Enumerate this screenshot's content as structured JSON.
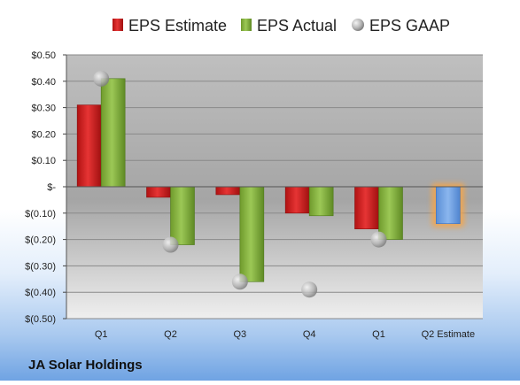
{
  "chart_data": {
    "type": "bar",
    "title": "",
    "xlabel": "",
    "ylabel": "",
    "ylim": [
      -0.5,
      0.5
    ],
    "yticks": [
      0.5,
      0.4,
      0.3,
      0.2,
      0.1,
      0,
      -0.1,
      -0.2,
      -0.3,
      -0.4,
      -0.5
    ],
    "ytick_labels": [
      "$0.50",
      "$0.40",
      "$0.30",
      "$0.20",
      "$0.10",
      "$-",
      "$(0.10)",
      "$(0.20)",
      "$(0.30)",
      "$(0.40)",
      "$(0.50)"
    ],
    "categories": [
      "Q1",
      "Q2",
      "Q3",
      "Q4",
      "Q1",
      "Q2 Estimate"
    ],
    "series": [
      {
        "name": "EPS Estimate",
        "kind": "bar",
        "color": "#d42020",
        "values": [
          0.31,
          -0.04,
          -0.03,
          -0.1,
          -0.16,
          null
        ]
      },
      {
        "name": "EPS Actual",
        "kind": "bar",
        "color": "#8cb842",
        "values": [
          0.41,
          -0.22,
          -0.36,
          -0.11,
          -0.2,
          null
        ]
      },
      {
        "name": "EPS GAAP",
        "kind": "point",
        "color": "#b8b8b8",
        "values": [
          0.41,
          -0.22,
          -0.36,
          -0.39,
          -0.2,
          null
        ]
      }
    ],
    "forecast": {
      "category": "Q2 Estimate",
      "value": -0.14,
      "color": "#6fa0e0",
      "highlight_color": "#f5a54a"
    },
    "legend_position": "top",
    "grid": true
  },
  "footer": {
    "company": "JA Solar Holdings"
  }
}
